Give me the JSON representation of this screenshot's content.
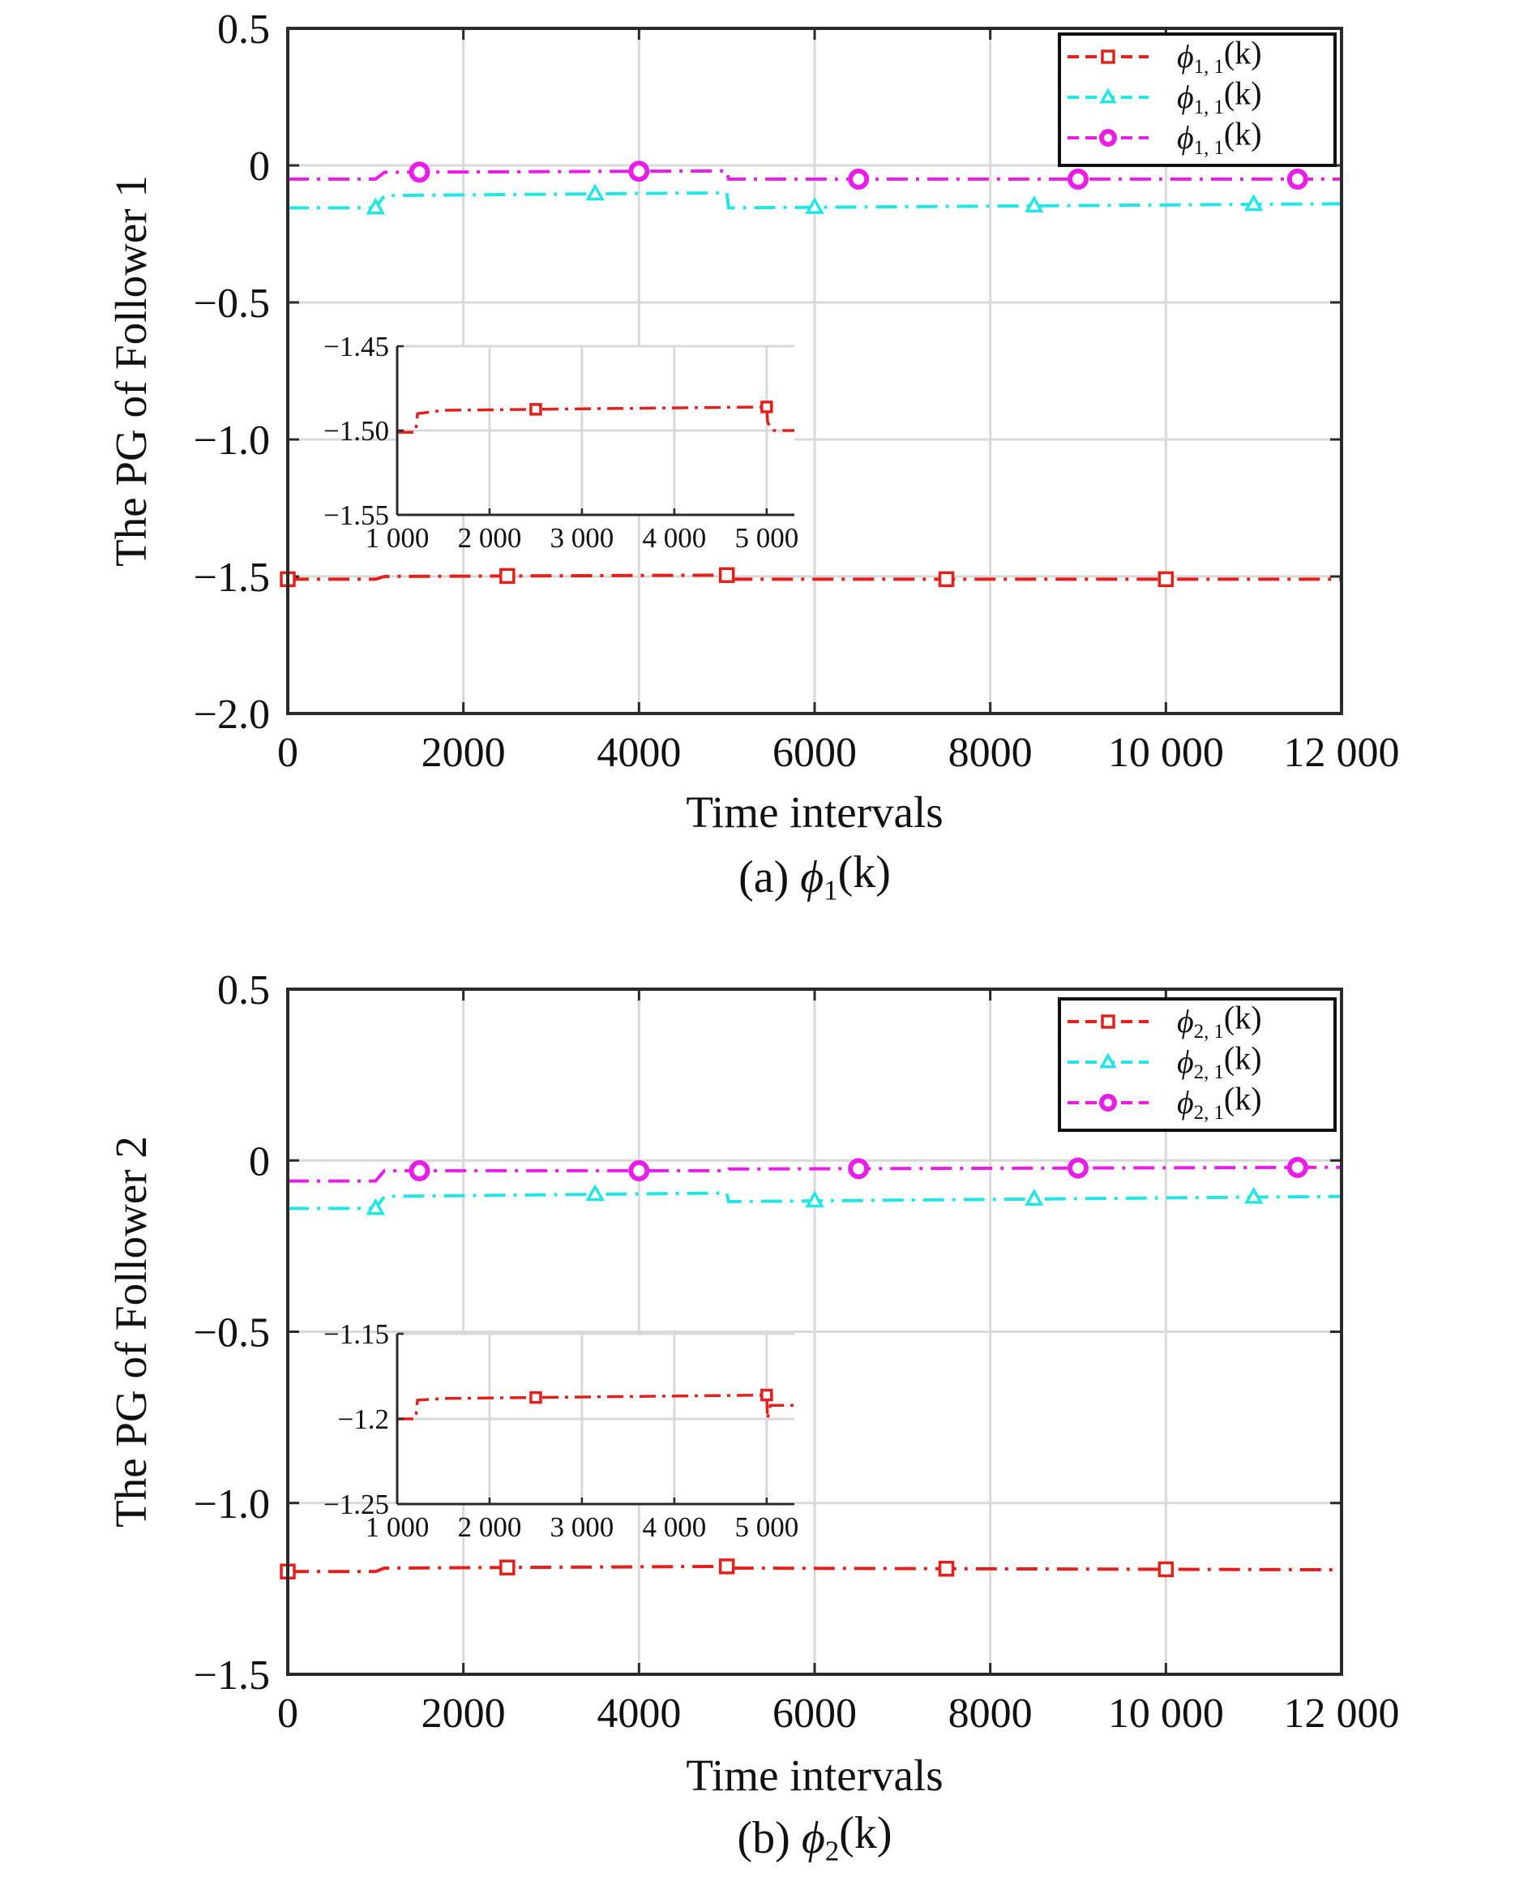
{
  "chart_data": [
    {
      "type": "line",
      "ylabel": "The PG of Follower 1",
      "xlabel": "Time intervals",
      "caption": {
        "prefix": "(a) ",
        "sym": "ϕ",
        "sub": "1",
        "suffix": "(k)"
      },
      "xlim": [
        0,
        12000
      ],
      "ylim": [
        -2.0,
        0.5
      ],
      "xticks": [
        0,
        2000,
        4000,
        6000,
        8000,
        10000,
        12000
      ],
      "xtick_labels": [
        "0",
        "2000",
        "4000",
        "6000",
        "8000",
        "10 000",
        "12 000"
      ],
      "yticks": [
        0.5,
        0,
        -0.5,
        -1.0,
        -1.5,
        -2.0
      ],
      "ytick_labels": [
        "0.5",
        "0",
        "−0.5",
        "−1.0",
        "−1.5",
        "−2.0"
      ],
      "grid": true,
      "legend_position": "top-right",
      "series": [
        {
          "name": "ϕ1, 1(k)",
          "legend": {
            "sym": "ϕ",
            "sub": "1, 1",
            "suffix": "(k)"
          },
          "color": "#e3201b",
          "marker": "square",
          "points": [
            [
              0,
              -1.51
            ],
            [
              1000,
              -1.51
            ],
            [
              1050,
              -1.505
            ],
            [
              1100,
              -1.5
            ],
            [
              5000,
              -1.495
            ],
            [
              5020,
              -1.505
            ],
            [
              5060,
              -1.51
            ],
            [
              12000,
              -1.51
            ]
          ],
          "markers_x": [
            0,
            2500,
            5000,
            7500,
            10000
          ]
        },
        {
          "name": "ϕ1, 1(k)",
          "legend": {
            "sym": "ϕ",
            "sub": "1, 1",
            "suffix": "(k)"
          },
          "color": "#22e6e6",
          "marker": "triangle",
          "points": [
            [
              0,
              -0.155
            ],
            [
              1000,
              -0.155
            ],
            [
              1100,
              -0.11
            ],
            [
              5000,
              -0.1
            ],
            [
              5020,
              -0.155
            ],
            [
              12000,
              -0.14
            ]
          ],
          "markers_x": [
            1000,
            3500,
            6000,
            8500,
            11000
          ]
        },
        {
          "name": "ϕ1, 1(k)",
          "legend": {
            "sym": "ϕ",
            "sub": "1, 1",
            "suffix": "(k)"
          },
          "color": "#e81ee8",
          "marker": "circle",
          "points": [
            [
              0,
              -0.05
            ],
            [
              1000,
              -0.05
            ],
            [
              1100,
              -0.025
            ],
            [
              5000,
              -0.02
            ],
            [
              5020,
              -0.05
            ],
            [
              12000,
              -0.05
            ]
          ],
          "markers_x": [
            1500,
            4000,
            6500,
            9000,
            11500
          ]
        }
      ],
      "inset": {
        "xlim": [
          1000,
          5300
        ],
        "ylim": [
          -1.55,
          -1.45
        ],
        "xticks": [
          1000,
          2000,
          3000,
          4000,
          5000
        ],
        "xtick_labels": [
          "1 000",
          "2 000",
          "3 000",
          "4 000",
          "5 000"
        ],
        "yticks": [
          -1.45,
          -1.5,
          -1.55
        ],
        "ytick_labels": [
          "−1.45",
          "−1.50",
          "−1.55"
        ],
        "series": {
          "color": "#e3201b",
          "marker": "square",
          "points": [
            [
              1000,
              -1.501
            ],
            [
              1200,
              -1.501
            ],
            [
              1220,
              -1.49
            ],
            [
              1500,
              -1.488
            ],
            [
              5000,
              -1.486
            ],
            [
              5010,
              -1.495
            ],
            [
              5060,
              -1.5
            ],
            [
              5300,
              -1.5
            ]
          ],
          "markers_x": [
            2500,
            5000
          ]
        }
      }
    },
    {
      "type": "line",
      "ylabel": "The PG of Follower 2",
      "xlabel": "Time intervals",
      "caption": {
        "prefix": "(b) ",
        "sym": "ϕ",
        "sub": "2",
        "suffix": "(k)"
      },
      "xlim": [
        0,
        12000
      ],
      "ylim": [
        -1.5,
        0.5
      ],
      "xticks": [
        0,
        2000,
        4000,
        6000,
        8000,
        10000,
        12000
      ],
      "xtick_labels": [
        "0",
        "2000",
        "4000",
        "6000",
        "8000",
        "10 000",
        "12 000"
      ],
      "yticks": [
        0.5,
        0,
        -0.5,
        -1.0,
        -1.5
      ],
      "ytick_labels": [
        "0.5",
        "0",
        "−0.5",
        "−1.0",
        "−1.5"
      ],
      "grid": true,
      "legend_position": "top-right",
      "series": [
        {
          "name": "ϕ2, 1(k)",
          "legend": {
            "sym": "ϕ",
            "sub": "2, 1",
            "suffix": "(k)"
          },
          "color": "#e3201b",
          "marker": "square",
          "points": [
            [
              0,
              -1.2
            ],
            [
              1000,
              -1.2
            ],
            [
              1100,
              -1.19
            ],
            [
              5000,
              -1.185
            ],
            [
              5050,
              -1.19
            ],
            [
              12000,
              -1.195
            ]
          ],
          "markers_x": [
            0,
            2500,
            5000,
            7500,
            10000
          ]
        },
        {
          "name": "ϕ2, 1(k)",
          "legend": {
            "sym": "ϕ",
            "sub": "2, 1",
            "suffix": "(k)"
          },
          "color": "#22e6e6",
          "marker": "triangle",
          "points": [
            [
              0,
              -0.14
            ],
            [
              1000,
              -0.14
            ],
            [
              1100,
              -0.105
            ],
            [
              5000,
              -0.095
            ],
            [
              5020,
              -0.12
            ],
            [
              12000,
              -0.105
            ]
          ],
          "markers_x": [
            1000,
            3500,
            6000,
            8500,
            11000
          ]
        },
        {
          "name": "ϕ2, 1(k)",
          "legend": {
            "sym": "ϕ",
            "sub": "2, 1",
            "suffix": "(k)"
          },
          "color": "#e81ee8",
          "marker": "circle",
          "points": [
            [
              0,
              -0.06
            ],
            [
              1000,
              -0.06
            ],
            [
              1100,
              -0.03
            ],
            [
              5000,
              -0.03
            ],
            [
              5020,
              -0.025
            ],
            [
              12000,
              -0.02
            ]
          ],
          "markers_x": [
            1500,
            4000,
            6500,
            9000,
            11500
          ]
        }
      ],
      "inset": {
        "xlim": [
          1000,
          5300
        ],
        "ylim": [
          -1.25,
          -1.15
        ],
        "xticks": [
          1000,
          2000,
          3000,
          4000,
          5000
        ],
        "xtick_labels": [
          "1 000",
          "2 000",
          "3 000",
          "4 000",
          "5 000"
        ],
        "yticks": [
          -1.15,
          -1.2,
          -1.25
        ],
        "ytick_labels": [
          "−1.15",
          "−1.2",
          "−1.25"
        ],
        "series": {
          "color": "#e3201b",
          "marker": "square",
          "points": [
            [
              1000,
              -1.2
            ],
            [
              1200,
              -1.2
            ],
            [
              1220,
              -1.189
            ],
            [
              1500,
              -1.188
            ],
            [
              5000,
              -1.186
            ],
            [
              5010,
              -1.2
            ],
            [
              5040,
              -1.192
            ],
            [
              5300,
              -1.192
            ]
          ],
          "markers_x": [
            2500,
            5000
          ]
        }
      }
    }
  ]
}
